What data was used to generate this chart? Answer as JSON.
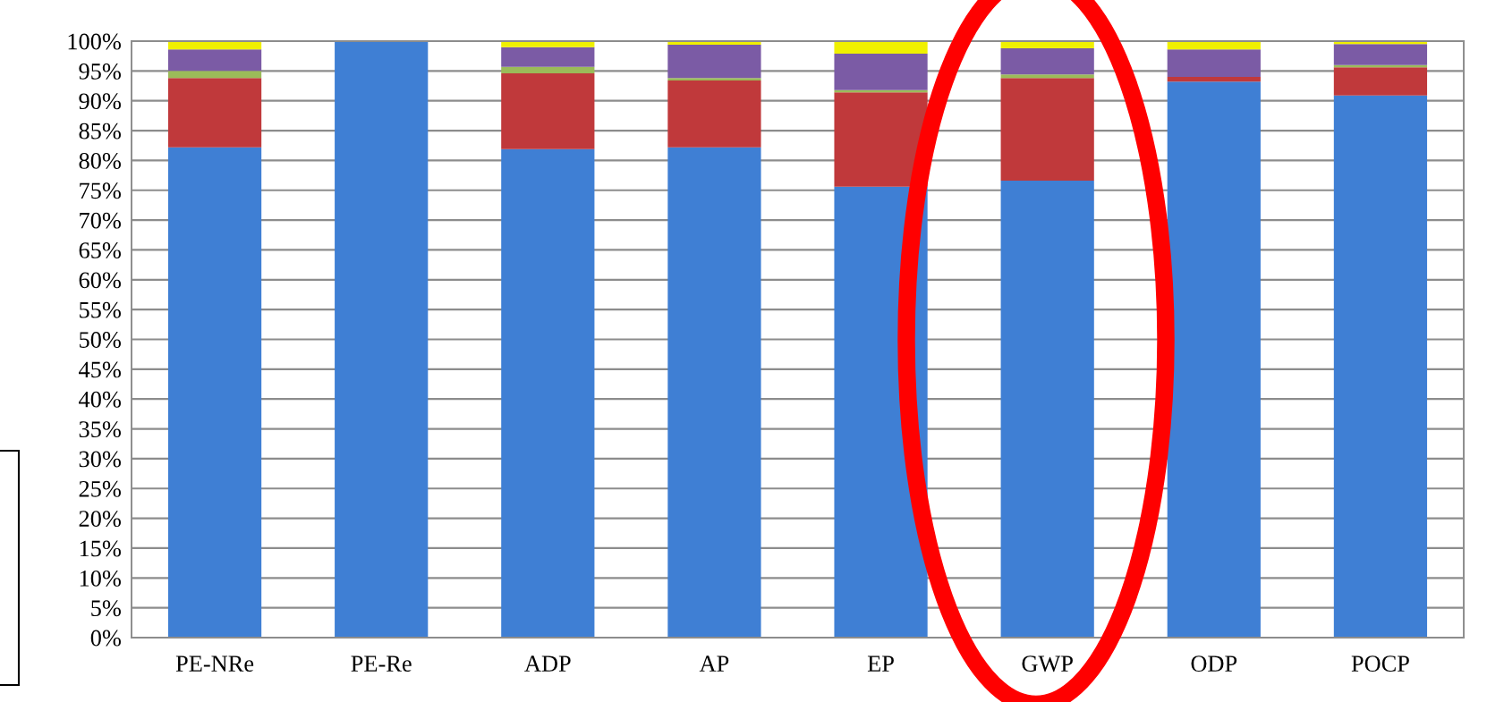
{
  "chart_data": {
    "type": "bar",
    "stacked": true,
    "categories": [
      "PE-NRe",
      "PE-Re",
      "ADP",
      "AP",
      "EP",
      "GWP",
      "ODP",
      "POCP"
    ],
    "series": [
      {
        "color": "#3f7fd4",
        "values": [
          82.2,
          100,
          81.9,
          82.2,
          75.6,
          76.6,
          93.2,
          90.9
        ]
      },
      {
        "color": "#c0393b",
        "values": [
          11.6,
          0,
          12.7,
          11.2,
          15.8,
          17.2,
          0.8,
          4.7
        ]
      },
      {
        "color": "#9bbb59",
        "values": [
          1.2,
          0,
          1.1,
          0.4,
          0.4,
          0.6,
          0,
          0.4
        ]
      },
      {
        "color": "#7b5ba5",
        "values": [
          3.6,
          0,
          3.3,
          5.6,
          6.1,
          4.4,
          4.6,
          3.5
        ]
      },
      {
        "color": "#f0f000",
        "values": [
          1.4,
          0,
          1.0,
          0.6,
          2.1,
          1.2,
          1.4,
          0.5
        ]
      }
    ],
    "ylim": [
      0,
      100
    ],
    "yticks": [
      {
        "value": 0,
        "label": "0%"
      },
      {
        "value": 5,
        "label": "5%"
      },
      {
        "value": 10,
        "label": "10%"
      },
      {
        "value": 15,
        "label": "15%"
      },
      {
        "value": 20,
        "label": "20%"
      },
      {
        "value": 25,
        "label": "25%"
      },
      {
        "value": 30,
        "label": "30%"
      },
      {
        "value": 35,
        "label": "35%"
      },
      {
        "value": 40,
        "label": "40%"
      },
      {
        "value": 45,
        "label": "45%"
      },
      {
        "value": 50,
        "label": "50%"
      },
      {
        "value": 55,
        "label": "55%"
      },
      {
        "value": 60,
        "label": "60%"
      },
      {
        "value": 65,
        "label": "65%"
      },
      {
        "value": 70,
        "label": "70%"
      },
      {
        "value": 75,
        "label": "75%"
      },
      {
        "value": 80,
        "label": "80%"
      },
      {
        "value": 85,
        "label": "85%"
      },
      {
        "value": 90,
        "label": "90%"
      },
      {
        "value": 95,
        "label": "95%"
      },
      {
        "value": 100,
        "label": "100%"
      }
    ],
    "grid": "y"
  }
}
